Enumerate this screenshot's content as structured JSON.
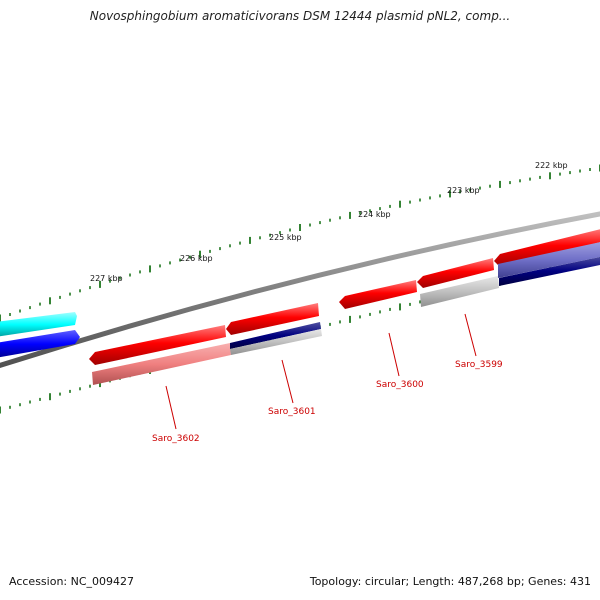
{
  "title": "Novosphingobium aromaticivorans DSM 12444 plasmid pNL2, comp...",
  "footer": {
    "accession": "Accession: NC_009427",
    "summary": "Topology: circular; Length: 487,268 bp; Genes: 431"
  },
  "scale": {
    "ticks": [
      "227 kbp",
      "226 kbp",
      "225 kbp",
      "224 kbp",
      "223 kbp",
      "222 kbp"
    ]
  },
  "genes": [
    {
      "label": "Saro_3602"
    },
    {
      "label": "Saro_3601"
    },
    {
      "label": "Saro_3600"
    },
    {
      "label": "Saro_3599"
    }
  ],
  "colors": {
    "backbone": "#808080",
    "forward_gene": "#ff0000",
    "forward_gene_light": "#f08080",
    "reverse_gene_blue": "#0000ff",
    "reverse_gene_cyan": "#00ffff",
    "navy_band": "#000080",
    "grey_band": "#c0c0c0",
    "tick": "#006400",
    "label": "#cc0000"
  }
}
